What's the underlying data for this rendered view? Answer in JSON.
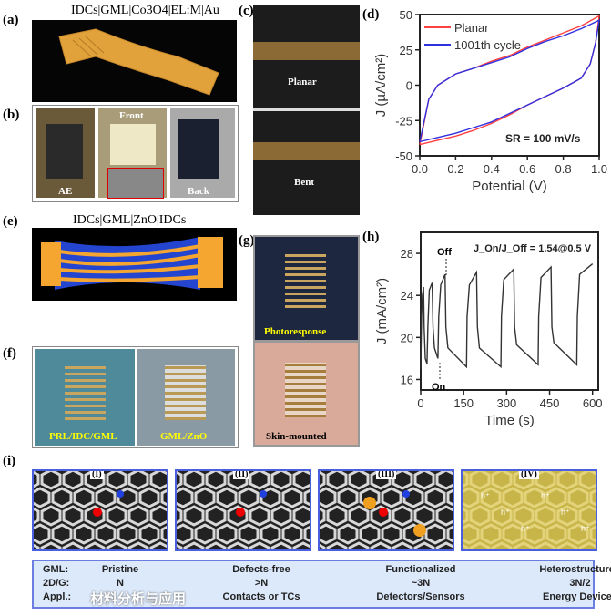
{
  "panels": {
    "a": {
      "label": "(a)",
      "title": "IDCs|GML|Co3O4|EL:M|Au"
    },
    "b": {
      "label": "(b)",
      "captions": [
        "AE",
        "Front",
        "Back"
      ]
    },
    "c": {
      "label": "(c)",
      "captions": [
        "Planar",
        "Bent"
      ]
    },
    "d": {
      "label": "(d)"
    },
    "e": {
      "label": "(e)",
      "title": "IDCs|GML|ZnO|IDCs"
    },
    "f": {
      "label": "(f)",
      "captions": [
        "PRL/IDC/GML",
        "GML/ZnO"
      ]
    },
    "g": {
      "label": "(g)",
      "captions": [
        "Photoresponse",
        "Skin-mounted"
      ]
    },
    "h": {
      "label": "(h)"
    },
    "i": {
      "label": "(i)",
      "subpanels": [
        "(I)",
        "(II)",
        "(III)",
        "(IV)"
      ],
      "carrier_symbol": "h⁺"
    }
  },
  "table": {
    "row_labels": [
      "GML:",
      "2D/G:",
      "Appl.:"
    ],
    "columns": [
      {
        "gml": "Pristine",
        "ratio": "N",
        "appl": ""
      },
      {
        "gml": "Defects-free",
        "ratio": ">N",
        "appl": "Contacts or TCs"
      },
      {
        "gml": "Functionalized",
        "ratio": "~3N",
        "appl": "Detectors/Sensors"
      },
      {
        "gml": "Heterostructured",
        "ratio": "3N/2",
        "appl": "Energy Devices"
      }
    ]
  },
  "watermark": "材料分析与应用",
  "chart_data": [
    {
      "type": "line",
      "panel": "d",
      "xlabel": "Potential (V)",
      "ylabel": "J (µA/cm²)",
      "xlim": [
        0,
        1.0
      ],
      "ylim": [
        -50,
        50
      ],
      "xticks": [
        "0.0",
        "0.2",
        "0.4",
        "0.6",
        "0.8",
        "1.0"
      ],
      "yticks": [
        "-50",
        "-25",
        "0",
        "25",
        "50"
      ],
      "annotation": "SR = 100 mV/s",
      "legend_position": "top-left",
      "series": [
        {
          "name": "Planar",
          "color": "#ff4040",
          "x": [
            0,
            0.05,
            0.1,
            0.2,
            0.3,
            0.4,
            0.5,
            0.6,
            0.7,
            0.8,
            0.9,
            1.0,
            0.98,
            0.95,
            0.9,
            0.8,
            0.7,
            0.6,
            0.5,
            0.4,
            0.3,
            0.2,
            0.1,
            0
          ],
          "y": [
            -42,
            -10,
            0,
            8,
            12,
            17,
            21,
            27,
            32,
            37,
            42,
            49,
            30,
            15,
            5,
            -2,
            -8,
            -14,
            -21,
            -27,
            -32,
            -36,
            -39,
            -42
          ]
        },
        {
          "name": "1001th cycle",
          "color": "#3030e0",
          "x": [
            0,
            0.05,
            0.1,
            0.2,
            0.3,
            0.4,
            0.5,
            0.6,
            0.7,
            0.8,
            0.9,
            1.0,
            0.98,
            0.95,
            0.9,
            0.8,
            0.7,
            0.6,
            0.5,
            0.4,
            0.3,
            0.2,
            0.1,
            0
          ],
          "y": [
            -40,
            -10,
            0,
            8,
            12,
            16,
            20,
            26,
            31,
            35,
            40,
            46,
            30,
            15,
            5,
            -2,
            -8,
            -14,
            -20,
            -26,
            -30,
            -34,
            -37,
            -40
          ]
        }
      ]
    },
    {
      "type": "line",
      "panel": "h",
      "xlabel": "Time (s)",
      "ylabel": "J (mA/cm²)",
      "xlim": [
        0,
        620
      ],
      "ylim": [
        15,
        30
      ],
      "xticks": [
        "0",
        "150",
        "300",
        "450",
        "600"
      ],
      "yticks": [
        "16",
        "20",
        "24",
        "28"
      ],
      "annotation": "J_On/J_Off = 1.54@0.5 V",
      "markers": [
        "Off",
        "On"
      ],
      "series": [
        {
          "color": "#333333",
          "x": [
            0,
            3,
            6,
            10,
            12,
            16,
            22,
            25,
            30,
            40,
            43,
            48,
            60,
            63,
            70,
            85,
            88,
            95,
            160,
            162,
            170,
            195,
            198,
            205,
            280,
            282,
            290,
            325,
            328,
            335,
            410,
            412,
            420,
            455,
            458,
            465,
            545,
            547,
            555,
            600
          ],
          "y": [
            17,
            22,
            24,
            24.8,
            21,
            18,
            17.5,
            21,
            24.5,
            25.2,
            21,
            19,
            18,
            22,
            25,
            26,
            21,
            19,
            17.2,
            22,
            25,
            26.2,
            21,
            19,
            17.2,
            22,
            25.5,
            26.5,
            21,
            19.3,
            17.4,
            22,
            25.7,
            26.7,
            21,
            19.5,
            17.4,
            22,
            26,
            27
          ]
        }
      ]
    }
  ]
}
